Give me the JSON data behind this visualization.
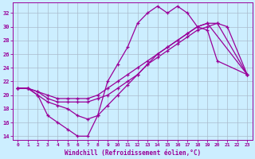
{
  "xlabel": "Windchill (Refroidissement éolien,°C)",
  "xlim": [
    -0.5,
    23.5
  ],
  "ylim": [
    13.5,
    33.5
  ],
  "yticks": [
    14,
    16,
    18,
    20,
    22,
    24,
    26,
    28,
    30,
    32
  ],
  "xticks": [
    0,
    1,
    2,
    3,
    4,
    5,
    6,
    7,
    8,
    9,
    10,
    11,
    12,
    13,
    14,
    15,
    16,
    17,
    18,
    19,
    20,
    21,
    22,
    23
  ],
  "bg_color": "#cceeff",
  "grid_color": "#aabbcc",
  "line_color": "#990099",
  "series": [
    {
      "x": [
        0,
        1,
        2,
        3,
        4,
        5,
        6,
        7,
        8,
        9,
        10,
        11,
        12,
        13,
        14,
        15,
        16,
        17,
        18,
        19,
        20,
        21,
        22,
        23
      ],
      "y": [
        21,
        21,
        20,
        17,
        16,
        15,
        14,
        14,
        17,
        22,
        24.5,
        27,
        30.5,
        32,
        33,
        32,
        33,
        32,
        30,
        29.5,
        25,
        null,
        null,
        23
      ]
    },
    {
      "x": [
        0,
        1,
        2,
        3,
        4,
        5,
        6,
        7,
        8,
        9,
        10,
        11,
        12,
        13,
        14,
        15,
        16,
        17,
        18,
        19,
        20,
        21,
        22,
        23
      ],
      "y": [
        21,
        21,
        20,
        19,
        18.5,
        18,
        17,
        16.5,
        17,
        18.5,
        20,
        21.5,
        23,
        24.5,
        26,
        27,
        28,
        29,
        30,
        30.5,
        30.5,
        30,
        null,
        23
      ]
    },
    {
      "x": [
        0,
        1,
        2,
        3,
        4,
        5,
        6,
        7,
        8,
        9,
        10,
        11,
        12,
        13,
        14,
        15,
        16,
        17,
        18,
        19,
        20,
        21,
        22,
        23
      ],
      "y": [
        21,
        21,
        20.5,
        19.5,
        19,
        19,
        19,
        19,
        19.5,
        20,
        21,
        22,
        23,
        24.5,
        25.5,
        26.5,
        27.5,
        28.5,
        29.5,
        30,
        30.5,
        null,
        null,
        23
      ]
    },
    {
      "x": [
        0,
        1,
        2,
        3,
        4,
        5,
        6,
        7,
        8,
        9,
        10,
        11,
        12,
        13,
        14,
        15,
        16,
        17,
        18,
        19,
        20,
        21,
        22,
        23
      ],
      "y": [
        21,
        21,
        20.5,
        20,
        19.5,
        19.5,
        19.5,
        19.5,
        20,
        21,
        22,
        23,
        24,
        25,
        26,
        27,
        28,
        29,
        30,
        30.5,
        null,
        null,
        null,
        23
      ]
    }
  ]
}
